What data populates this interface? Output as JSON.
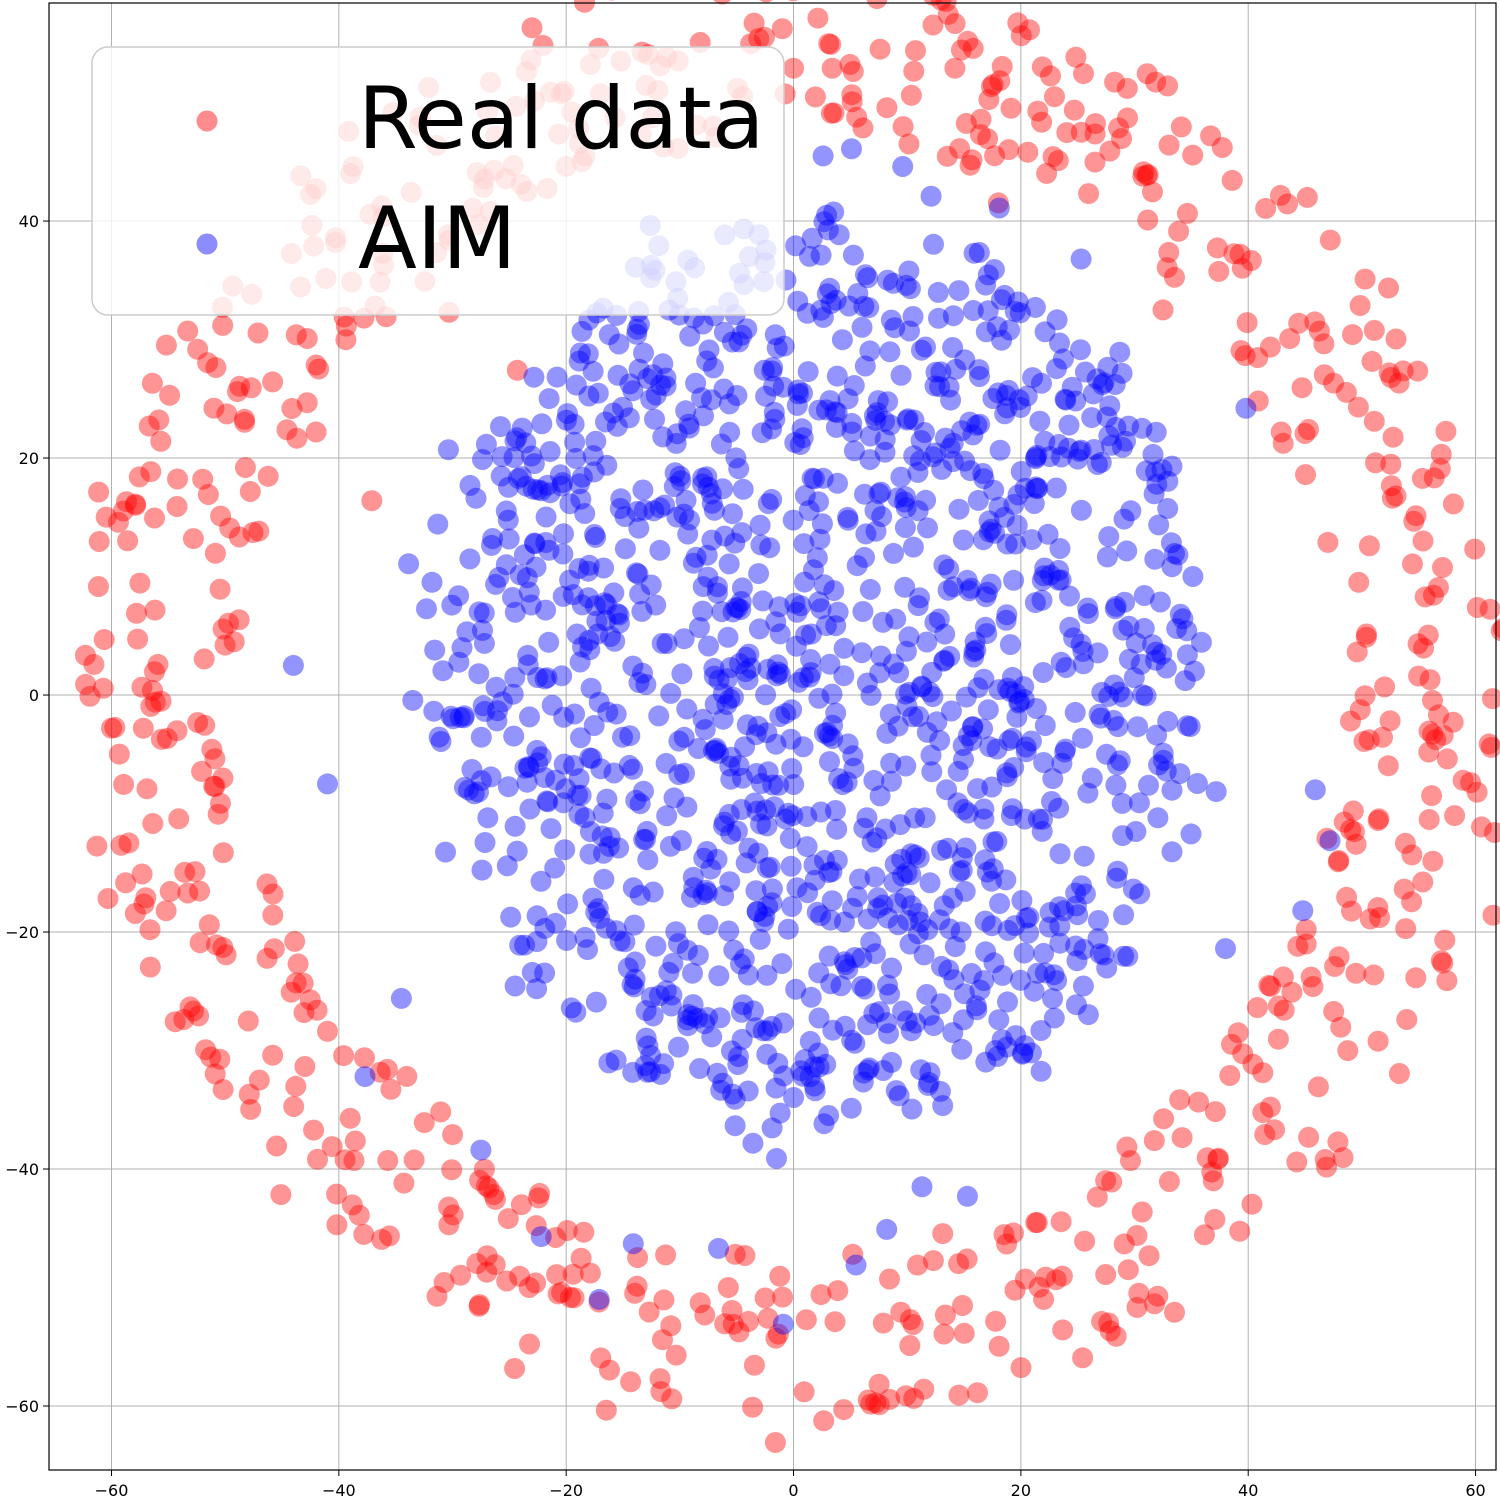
{
  "chart_data": {
    "type": "scatter",
    "title": "",
    "xlabel": "",
    "ylabel": "",
    "xlim": [
      -65.5,
      61.8
    ],
    "ylim": [
      -65.4,
      58.4
    ],
    "x_ticks": [
      -60,
      -40,
      -20,
      0,
      20,
      40,
      60
    ],
    "y_ticks": [
      -60,
      -40,
      -20,
      0,
      20,
      40
    ],
    "grid": true,
    "legend_position": "top-left",
    "colors": {
      "real": "#ff0000",
      "aim": "#0000ff",
      "grid": "#b0b0b0",
      "axis": "#000000"
    },
    "series": [
      {
        "name": "Real data",
        "color": "#ff0000",
        "ring_radius": 54,
        "ring_spread": 5,
        "ring_count": 720,
        "samples": [
          {
            "x": -60.0,
            "y": -2.8
          },
          {
            "x": -57.8,
            "y": 6.9
          },
          {
            "x": -57.2,
            "y": -2.8
          },
          {
            "x": -55.2,
            "y": -18.2
          },
          {
            "x": -52.8,
            "y": 13.2
          },
          {
            "x": -50.4,
            "y": 15.1
          },
          {
            "x": -47.0,
            "y": -32.5
          },
          {
            "x": -42.0,
            "y": 22.2
          },
          {
            "x": -38.2,
            "y": -43.9
          },
          {
            "x": -37.1,
            "y": 16.4
          },
          {
            "x": -30.3,
            "y": 32.3
          },
          {
            "x": -24.3,
            "y": 27.4
          },
          {
            "x": -19.5,
            "y": 49.2
          },
          {
            "x": -15.2,
            "y": 53.5
          },
          {
            "x": -5.3,
            "y": -53.1
          },
          {
            "x": -3.6,
            "y": -60.1
          },
          {
            "x": 0.0,
            "y": 52.9
          },
          {
            "x": 3.4,
            "y": 52.9
          },
          {
            "x": 14.2,
            "y": 52.9
          },
          {
            "x": 22.0,
            "y": -51.0
          },
          {
            "x": 32.5,
            "y": 32.5
          },
          {
            "x": 39.3,
            "y": 37.2
          },
          {
            "x": 42.9,
            "y": 22.2
          },
          {
            "x": 47.6,
            "y": -22.9
          },
          {
            "x": 51.2,
            "y": 19.6
          },
          {
            "x": 53.0,
            "y": 16.8
          },
          {
            "x": 56.0,
            "y": 1.3
          },
          {
            "x": 49.0,
            "y": -2.2
          }
        ]
      },
      {
        "name": "AIM",
        "color": "#0000ff",
        "disc_radius_x": 34,
        "disc_radius_y": 38,
        "disc_center": [
          2,
          2
        ],
        "disc_count": 1350,
        "samples": [
          {
            "x": -44.0,
            "y": 2.5
          },
          {
            "x": -41.0,
            "y": -7.5
          },
          {
            "x": -37.7,
            "y": -32.2
          },
          {
            "x": -34.5,
            "y": -25.6
          },
          {
            "x": -27.5,
            "y": -38.4
          },
          {
            "x": -22.2,
            "y": -45.7
          },
          {
            "x": -17.1,
            "y": -51.0
          },
          {
            "x": -14.1,
            "y": -46.3
          },
          {
            "x": -6.6,
            "y": -46.7
          },
          {
            "x": -1.5,
            "y": -39.1
          },
          {
            "x": -0.9,
            "y": -53.1
          },
          {
            "x": 5.5,
            "y": -48.1
          },
          {
            "x": 8.2,
            "y": -45.1
          },
          {
            "x": 11.3,
            "y": -41.5
          },
          {
            "x": 15.3,
            "y": -42.3
          },
          {
            "x": 2.6,
            "y": 45.5
          },
          {
            "x": 5.1,
            "y": 46.1
          },
          {
            "x": 9.6,
            "y": 44.6
          },
          {
            "x": 12.1,
            "y": 42.1
          },
          {
            "x": 18.1,
            "y": 41.1
          },
          {
            "x": 25.3,
            "y": 36.8
          },
          {
            "x": 39.8,
            "y": 24.2
          },
          {
            "x": 45.9,
            "y": -8.0
          },
          {
            "x": 47.2,
            "y": -12.3
          },
          {
            "x": 44.8,
            "y": -18.2
          },
          {
            "x": 38.0,
            "y": -21.4
          },
          {
            "x": 22.0,
            "y": -21.8
          },
          {
            "x": 4.8,
            "y": 25.0
          },
          {
            "x": -4.8,
            "y": 29.8
          },
          {
            "x": 1.5,
            "y": 3.0
          }
        ]
      }
    ]
  }
}
